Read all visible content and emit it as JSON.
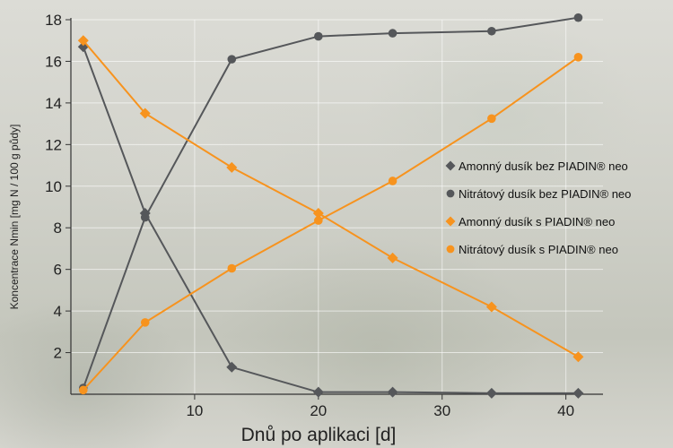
{
  "chart_data": {
    "type": "line",
    "xlabel": "Dnů po aplikaci [d]",
    "ylabel": "Koncentrace Nmin [mg N / 100 g půdy]",
    "xlim": [
      0,
      43
    ],
    "ylim": [
      0,
      18
    ],
    "xticks": [
      10,
      20,
      30,
      40
    ],
    "yticks": [
      2,
      4,
      6,
      8,
      10,
      12,
      14,
      16,
      18
    ],
    "grid": true,
    "legend_position": "right",
    "series": [
      {
        "name": "Amonný dusík bez PIADIN® neo",
        "color": "#55575a",
        "marker": "diamond",
        "x": [
          1,
          6,
          13,
          20,
          26,
          34,
          41
        ],
        "y": [
          16.7,
          8.7,
          1.3,
          0.1,
          0.1,
          0.05,
          0.05
        ]
      },
      {
        "name": "Nitrátový dusík bez PIADIN® neo",
        "color": "#55575a",
        "marker": "circle",
        "x": [
          1,
          6,
          13,
          20,
          26,
          34,
          41
        ],
        "y": [
          0.3,
          8.5,
          16.1,
          17.2,
          17.35,
          17.45,
          18.1
        ]
      },
      {
        "name": "Amonný dusík s PIADIN® neo",
        "color": "#f7931e",
        "marker": "diamond",
        "x": [
          1,
          6,
          13,
          20,
          26,
          34,
          41
        ],
        "y": [
          17.0,
          13.5,
          10.9,
          8.7,
          6.55,
          4.2,
          1.8
        ]
      },
      {
        "name": "Nitrátový dusík s PIADIN® neo",
        "color": "#f7931e",
        "marker": "circle",
        "x": [
          1,
          6,
          13,
          20,
          26,
          34,
          41
        ],
        "y": [
          0.2,
          3.45,
          6.05,
          8.35,
          10.25,
          13.25,
          16.2
        ]
      }
    ]
  }
}
